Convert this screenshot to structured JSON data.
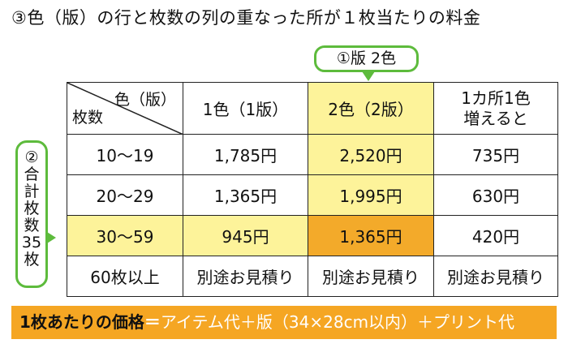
{
  "title": "③色（版）の行と枚数の列の重なった所が１枚当たりの料金",
  "callout": "①版 2色",
  "side_label": [
    "②",
    "合",
    "計",
    "枚",
    "数",
    "35",
    "枚"
  ],
  "table": {
    "corner_top": "色（版）",
    "corner_bottom": "枚数",
    "headers": [
      "1色（1版）",
      "2色（2版）",
      "1カ所1色",
      "増えると"
    ],
    "rows": [
      {
        "qty": "10～19",
        "c1": "1,785円",
        "c2": "2,520円",
        "add": "735円"
      },
      {
        "qty": "20～29",
        "c1": "1,365円",
        "c2": "1,995円",
        "add": "630円"
      },
      {
        "qty": "30～59",
        "c1": "945円",
        "c2": "1,365円",
        "add": "420円"
      },
      {
        "qty": "60枚以上",
        "c1": "別途お見積り",
        "c2": "別途お見積り",
        "add": "別途お見積り"
      }
    ]
  },
  "formula": {
    "label": "1枚あたりの価格",
    "eq": "＝",
    "expr": "アイテム代＋版（34×28cm以内）＋プリント代"
  },
  "colors": {
    "highlight_yellow": "#fdf39a",
    "highlight_orange": "#f3aa2a",
    "bubble_green": "#5dbb3c",
    "formula_bar": "#f5a623"
  }
}
